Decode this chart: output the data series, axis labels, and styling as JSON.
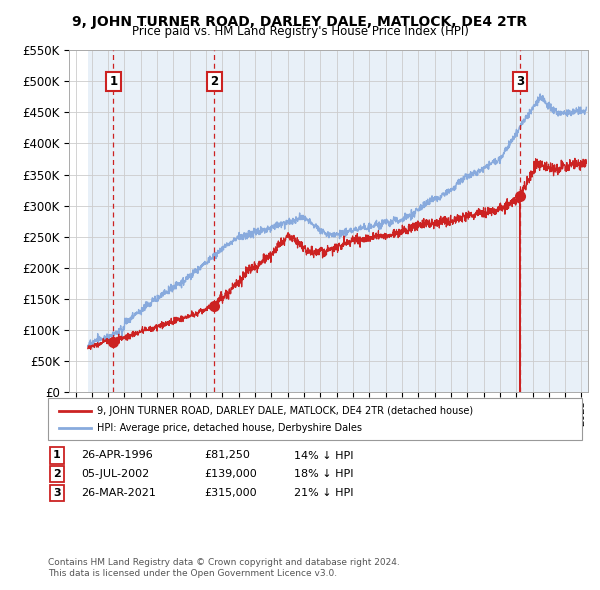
{
  "title": "9, JOHN TURNER ROAD, DARLEY DALE, MATLOCK, DE4 2TR",
  "subtitle": "Price paid vs. HM Land Registry's House Price Index (HPI)",
  "ylim": [
    0,
    550000
  ],
  "yticks": [
    0,
    50000,
    100000,
    150000,
    200000,
    250000,
    300000,
    350000,
    400000,
    450000,
    500000,
    550000
  ],
  "ytick_labels": [
    "£0",
    "£50K",
    "£100K",
    "£150K",
    "£200K",
    "£250K",
    "£300K",
    "£350K",
    "£400K",
    "£450K",
    "£500K",
    "£550K"
  ],
  "xlim_start": 1993.6,
  "xlim_end": 2025.4,
  "data_start": 1994.75,
  "sale_dates": [
    1996.32,
    2002.51,
    2021.23
  ],
  "sale_prices": [
    81250,
    139000,
    315000
  ],
  "sale_labels": [
    "1",
    "2",
    "3"
  ],
  "sale_date_strs": [
    "26-APR-1996",
    "05-JUL-2002",
    "26-MAR-2021"
  ],
  "sale_price_strs": [
    "£81,250",
    "£139,000",
    "£315,000"
  ],
  "sale_pct_strs": [
    "14% ↓ HPI",
    "18% ↓ HPI",
    "21% ↓ HPI"
  ],
  "red_line_color": "#cc2222",
  "blue_line_color": "#88aadd",
  "marker_color": "#cc2222",
  "dashed_line_color": "#cc2222",
  "grid_color": "#cccccc",
  "bg_color": "#e8f0f8",
  "white_area_end": 1994.75,
  "legend_label_red": "9, JOHN TURNER ROAD, DARLEY DALE, MATLOCK, DE4 2TR (detached house)",
  "legend_label_blue": "HPI: Average price, detached house, Derbyshire Dales",
  "footer1": "Contains HM Land Registry data © Crown copyright and database right 2024.",
  "footer2": "This data is licensed under the Open Government Licence v3.0."
}
